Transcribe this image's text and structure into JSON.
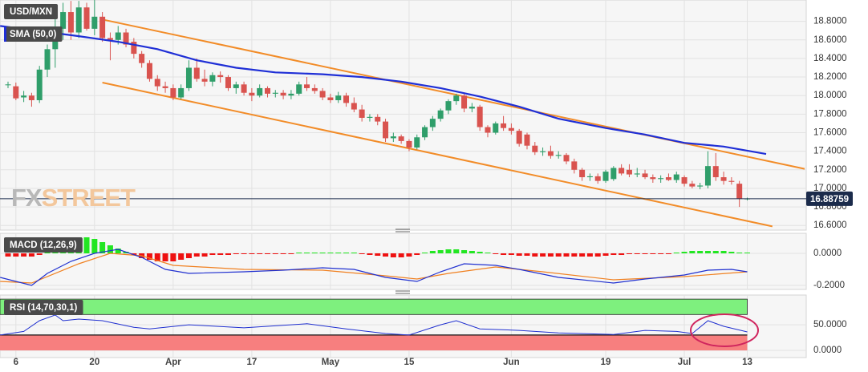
{
  "chart_data": {
    "type": "candlestick",
    "title": "USD/MXN",
    "watermark": [
      "FX",
      "STREET"
    ],
    "categories": [
      null,
      "6",
      null,
      null,
      null,
      null,
      null,
      null,
      null,
      null,
      null,
      "20",
      null,
      null,
      null,
      null,
      null,
      null,
      null,
      null,
      null,
      "Apr",
      null,
      null,
      null,
      null,
      null,
      null,
      null,
      null,
      null,
      "17",
      null,
      null,
      null,
      null,
      null,
      null,
      null,
      null,
      null,
      "May",
      null,
      null,
      null,
      null,
      null,
      null,
      null,
      null,
      null,
      "15",
      null,
      null,
      null,
      null,
      null,
      null,
      null,
      null,
      null,
      null,
      null,
      null,
      "Jun",
      null,
      null,
      null,
      null,
      null,
      null,
      null,
      null,
      null,
      null,
      null,
      "19",
      null,
      null,
      null,
      null,
      null,
      null,
      null,
      null,
      null,
      "Jul",
      null,
      null,
      null,
      null,
      null,
      null,
      null,
      "13"
    ],
    "xlim": [
      -1.02,
      101.5
    ],
    "candles": [
      [
        18.12,
        18.15,
        18.08,
        18.12
      ],
      [
        18.1,
        18.14,
        17.95,
        17.97
      ],
      [
        17.98,
        18.05,
        17.93,
        18.0
      ],
      [
        18.0,
        18.03,
        17.88,
        17.95
      ],
      [
        17.95,
        18.32,
        17.92,
        18.28
      ],
      [
        18.28,
        18.55,
        18.2,
        18.5
      ],
      [
        18.5,
        18.95,
        18.3,
        18.72
      ],
      [
        18.72,
        19.0,
        18.6,
        18.9
      ],
      [
        18.9,
        19.02,
        18.6,
        18.68
      ],
      [
        18.68,
        19.02,
        18.62,
        18.95
      ],
      [
        18.95,
        19.0,
        18.7,
        18.72
      ],
      [
        18.72,
        19.03,
        18.65,
        18.85
      ],
      [
        18.85,
        18.9,
        18.58,
        18.62
      ],
      [
        18.62,
        18.68,
        18.38,
        18.6
      ],
      [
        18.6,
        18.75,
        18.55,
        18.68
      ],
      [
        18.68,
        18.72,
        18.52,
        18.55
      ],
      [
        18.58,
        18.62,
        18.4,
        18.45
      ],
      [
        18.45,
        18.48,
        18.3,
        18.35
      ],
      [
        18.35,
        18.38,
        18.15,
        18.18
      ],
      [
        18.18,
        18.22,
        18.05,
        18.1
      ],
      [
        18.1,
        18.15,
        18.03,
        18.08
      ],
      [
        18.08,
        18.12,
        17.95,
        17.98
      ],
      [
        17.98,
        18.12,
        17.96,
        18.08
      ],
      [
        18.08,
        18.38,
        18.05,
        18.3
      ],
      [
        18.3,
        18.4,
        18.15,
        18.18
      ],
      [
        18.18,
        18.28,
        18.1,
        18.15
      ],
      [
        18.15,
        18.25,
        18.1,
        18.22
      ],
      [
        18.22,
        18.26,
        18.14,
        18.2
      ],
      [
        18.2,
        18.22,
        18.05,
        18.08
      ],
      [
        18.08,
        18.15,
        18.02,
        18.12
      ],
      [
        18.12,
        18.15,
        18.0,
        18.03
      ],
      [
        18.03,
        18.08,
        17.94,
        18.0
      ],
      [
        18.0,
        18.12,
        17.98,
        18.08
      ],
      [
        18.08,
        18.1,
        17.98,
        18.02
      ],
      [
        18.02,
        18.06,
        17.98,
        18.03
      ],
      [
        18.03,
        18.06,
        17.96,
        18.0
      ],
      [
        18.0,
        18.06,
        17.96,
        18.02
      ],
      [
        18.02,
        18.15,
        18.0,
        18.12
      ],
      [
        18.12,
        18.2,
        18.05,
        18.08
      ],
      [
        18.08,
        18.12,
        18.02,
        18.05
      ],
      [
        18.05,
        18.08,
        17.95,
        17.98
      ],
      [
        17.98,
        18.02,
        17.92,
        17.95
      ],
      [
        17.95,
        18.04,
        17.92,
        18.0
      ],
      [
        18.0,
        18.03,
        17.88,
        17.92
      ],
      [
        17.92,
        17.98,
        17.82,
        17.85
      ],
      [
        17.85,
        17.9,
        17.72,
        17.76
      ],
      [
        17.76,
        17.8,
        17.72,
        17.77
      ],
      [
        17.77,
        17.8,
        17.68,
        17.72
      ],
      [
        17.72,
        17.75,
        17.5,
        17.54
      ],
      [
        17.54,
        17.6,
        17.5,
        17.56
      ],
      [
        17.56,
        17.58,
        17.48,
        17.51
      ],
      [
        17.51,
        17.53,
        17.4,
        17.44
      ],
      [
        17.44,
        17.58,
        17.42,
        17.55
      ],
      [
        17.55,
        17.68,
        17.52,
        17.66
      ],
      [
        17.66,
        17.78,
        17.62,
        17.75
      ],
      [
        17.75,
        17.86,
        17.72,
        17.84
      ],
      [
        17.84,
        17.96,
        17.8,
        17.94
      ],
      [
        17.94,
        18.02,
        17.9,
        18.0
      ],
      [
        18.0,
        18.02,
        17.82,
        17.86
      ],
      [
        17.86,
        17.92,
        17.82,
        17.88
      ],
      [
        17.88,
        17.9,
        17.62,
        17.66
      ],
      [
        17.66,
        17.68,
        17.55,
        17.6
      ],
      [
        17.6,
        17.72,
        17.58,
        17.7
      ],
      [
        17.7,
        17.78,
        17.62,
        17.65
      ],
      [
        17.65,
        17.7,
        17.58,
        17.62
      ],
      [
        17.62,
        17.64,
        17.45,
        17.48
      ],
      [
        17.58,
        17.6,
        17.42,
        17.46
      ],
      [
        17.46,
        17.5,
        17.36,
        17.39
      ],
      [
        17.39,
        17.44,
        17.35,
        17.4
      ],
      [
        17.4,
        17.46,
        17.32,
        17.35
      ],
      [
        17.35,
        17.4,
        17.32,
        17.36
      ],
      [
        17.36,
        17.38,
        17.26,
        17.29
      ],
      [
        17.29,
        17.32,
        17.16,
        17.2
      ],
      [
        17.2,
        17.22,
        17.08,
        17.12
      ],
      [
        17.12,
        17.16,
        17.08,
        17.13
      ],
      [
        17.13,
        17.16,
        17.05,
        17.08
      ],
      [
        17.08,
        17.2,
        17.06,
        17.18
      ],
      [
        17.1,
        17.24,
        17.08,
        17.22
      ],
      [
        17.22,
        17.26,
        17.14,
        17.16
      ],
      [
        17.2,
        17.26,
        17.12,
        17.15
      ],
      [
        17.15,
        17.22,
        17.12,
        17.16
      ],
      [
        17.16,
        17.2,
        17.1,
        17.12
      ],
      [
        17.12,
        17.15,
        17.06,
        17.1
      ],
      [
        17.1,
        17.14,
        17.06,
        17.11
      ],
      [
        17.12,
        17.16,
        17.08,
        17.09
      ],
      [
        17.09,
        17.18,
        17.06,
        17.15
      ],
      [
        17.12,
        17.14,
        17.02,
        17.05
      ],
      [
        17.05,
        17.08,
        17.0,
        17.02
      ],
      [
        17.02,
        17.06,
        16.99,
        17.03
      ],
      [
        17.03,
        17.4,
        17.0,
        17.24
      ],
      [
        17.24,
        17.38,
        17.08,
        17.12
      ],
      [
        17.12,
        17.18,
        17.04,
        17.08
      ],
      [
        17.08,
        17.12,
        17.04,
        17.07
      ],
      [
        17.05,
        17.08,
        16.8,
        16.89
      ],
      [
        16.89,
        16.9,
        16.87,
        16.89
      ]
    ],
    "up_color": "#2f9e6a",
    "down_color": "#d9534f",
    "ylim": [
      16.55,
      19.03
    ],
    "yticks": [
      {
        "value": 16.6,
        "label": "16.6000"
      },
      {
        "value": 16.8,
        "label": "16.8000"
      },
      {
        "value": 17.0,
        "label": "17.0000"
      },
      {
        "value": 17.2,
        "label": "17.2000"
      },
      {
        "value": 17.4,
        "label": "17.4000"
      },
      {
        "value": 17.6,
        "label": "17.6000"
      },
      {
        "value": 17.8,
        "label": "17.8000"
      },
      {
        "value": 18.0,
        "label": "18.0000"
      },
      {
        "value": 18.2,
        "label": "18.2000"
      },
      {
        "value": 18.4,
        "label": "18.4000"
      },
      {
        "value": 18.6,
        "label": "18.6000"
      },
      {
        "value": 18.8,
        "label": "18.8000"
      }
    ],
    "grid": true,
    "last_price": 16.88759,
    "last_price_color": "#1b2b4b",
    "sma": {
      "name": "SMA (50,0)",
      "color": "#1f2fd6",
      "x": [
        -1,
        9,
        14,
        19,
        24,
        29,
        34,
        40,
        45,
        50,
        55,
        60,
        65,
        70,
        76,
        81,
        86,
        91,
        96.4
      ],
      "values": [
        18.75,
        18.64,
        18.58,
        18.5,
        18.38,
        18.3,
        18.25,
        18.23,
        18.2,
        18.15,
        18.08,
        17.99,
        17.88,
        17.75,
        17.65,
        17.58,
        17.49,
        17.45,
        17.37
      ]
    },
    "trendlines": {
      "color": "#f28c28",
      "lines": [
        {
          "x": [
            12,
            101.3
          ],
          "values": [
            18.82,
            17.21
          ]
        },
        {
          "x": [
            12,
            97.2
          ],
          "values": [
            18.14,
            16.59
          ]
        }
      ]
    },
    "macd": {
      "name": "MACD (12,26,9)",
      "ylim": [
        -0.225,
        0.125
      ],
      "yticks": [
        {
          "value": 0,
          "label": "0.0000"
        },
        {
          "value": -0.2,
          "label": "-0.2000"
        }
      ],
      "up_color": "#22e622",
      "down_color": "#ee1111",
      "histogram": [
        -0.02,
        -0.02,
        -0.02,
        -0.02,
        -0.01,
        0.02,
        0.05,
        0.08,
        0.1,
        0.1,
        0.1,
        0.09,
        0.07,
        0.05,
        0.03,
        0.01,
        -0.01,
        -0.03,
        -0.04,
        -0.05,
        -0.05,
        -0.05,
        -0.04,
        -0.03,
        -0.02,
        -0.02,
        -0.01,
        -0.01,
        -0.01,
        -0.005,
        -0.005,
        -0.005,
        -0.005,
        -0.005,
        -0.005,
        -0.005,
        -0.005,
        0.005,
        0.005,
        0.005,
        0.005,
        0.005,
        0.005,
        0.005,
        0.005,
        -0.005,
        -0.01,
        -0.015,
        -0.02,
        -0.025,
        -0.025,
        -0.02,
        -0.01,
        0.005,
        0.015,
        0.02,
        0.025,
        0.025,
        0.02,
        0.015,
        0.01,
        0.005,
        -0.005,
        -0.01,
        -0.01,
        -0.015,
        -0.015,
        -0.02,
        -0.02,
        -0.02,
        -0.02,
        -0.02,
        -0.02,
        -0.02,
        -0.02,
        -0.02,
        -0.015,
        -0.01,
        -0.01,
        -0.005,
        -0.005,
        -0.005,
        -0.005,
        -0.005,
        -0.005,
        0.005,
        0.01,
        0.015,
        0.015,
        0.015,
        0.015,
        0.015,
        0.01,
        0.005,
        0.005
      ],
      "macd": {
        "color": "#2030d0",
        "x": [
          -1,
          3,
          5,
          8,
          11,
          14,
          17,
          20,
          23,
          30,
          35,
          40,
          44,
          48,
          52,
          55,
          58,
          62,
          65,
          70,
          77,
          81,
          86,
          89,
          92,
          94
        ],
        "values": [
          -0.15,
          -0.2,
          -0.125,
          -0.05,
          0,
          0.025,
          -0.025,
          -0.1,
          -0.125,
          -0.115,
          -0.105,
          -0.09,
          -0.1,
          -0.15,
          -0.175,
          -0.115,
          -0.065,
          -0.075,
          -0.1,
          -0.15,
          -0.185,
          -0.16,
          -0.135,
          -0.105,
          -0.1,
          -0.115
        ]
      },
      "signal": {
        "color": "#f08020",
        "x": [
          -1,
          3,
          9,
          13,
          17,
          21,
          30,
          40,
          48,
          52,
          56,
          62,
          68,
          77,
          86,
          94
        ],
        "values": [
          -0.175,
          -0.185,
          -0.065,
          0,
          -0.015,
          -0.075,
          -0.1,
          -0.105,
          -0.14,
          -0.16,
          -0.125,
          -0.085,
          -0.115,
          -0.165,
          -0.145,
          -0.115
        ]
      }
    },
    "rsi": {
      "name": "RSI (14,70,30,1)",
      "ylim": [
        -14,
        108
      ],
      "yticks": [
        {
          "value": 50,
          "label": "50.0000"
        },
        {
          "value": 0,
          "label": "0.0000"
        }
      ],
      "upper_band": [
        70,
        100
      ],
      "lower_band": [
        0,
        30
      ],
      "band_colors": [
        "#7ef07e",
        "#f77f7f"
      ],
      "line": {
        "color": "#2030d0",
        "x": [
          -1,
          2,
          4,
          6,
          7,
          9,
          12,
          16,
          18,
          23,
          30,
          38,
          43,
          48,
          51,
          55,
          57,
          60,
          65,
          70,
          77,
          81,
          85,
          87,
          89,
          91,
          94
        ],
        "values": [
          30,
          37,
          58,
          69,
          58,
          61,
          58,
          45,
          42,
          50,
          44,
          52,
          42,
          33,
          30,
          50,
          58,
          42,
          39,
          34,
          31,
          39,
          37,
          33,
          58,
          47,
          36
        ]
      }
    }
  }
}
